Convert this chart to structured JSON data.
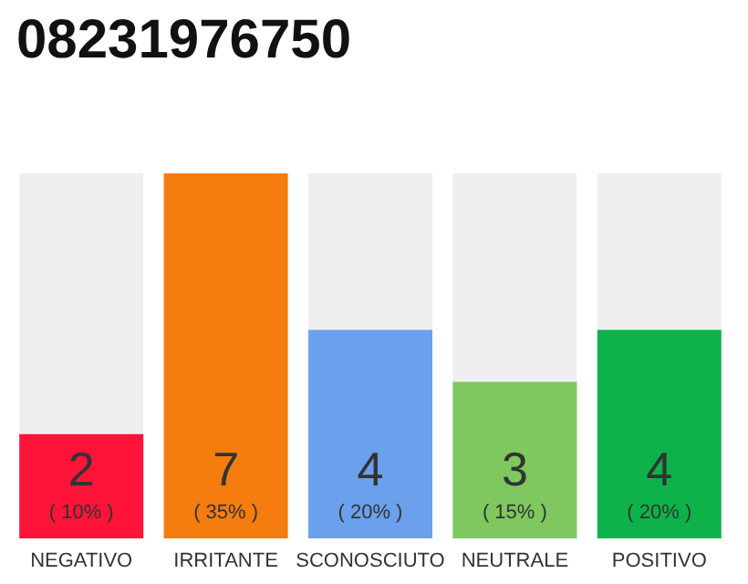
{
  "chart_data": {
    "type": "bar",
    "title": "08231976750",
    "categories": [
      "NEGATIVO",
      "IRRITANTE",
      "SCONOSCIUTO",
      "NEUTRALE",
      "POSITIVO"
    ],
    "values": [
      2,
      7,
      4,
      3,
      4
    ],
    "colors": [
      "#ff1439",
      "#f57c0e",
      "#6ba0ec",
      "#7ec85f",
      "#0db34a"
    ],
    "value_labels": [
      "2\n( 10% )",
      "7\n( 35% )",
      "4\n( 20% )",
      "3\n( 15% )",
      "4\n( 20% )"
    ]
  }
}
